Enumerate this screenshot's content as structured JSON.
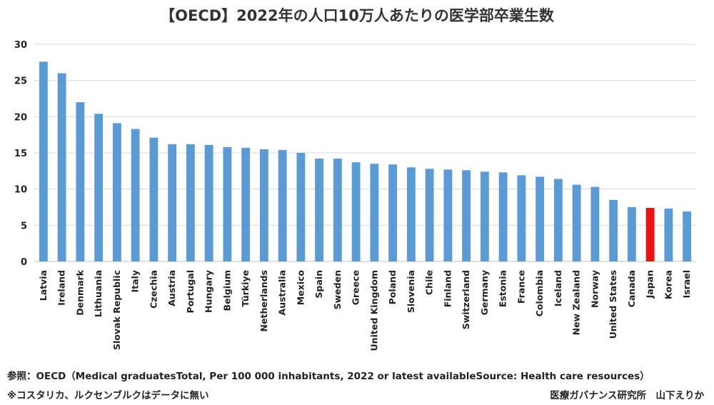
{
  "chart_data": {
    "type": "bar",
    "title": "【OECD】2022年の人口10万人あたりの医学部卒業生数",
    "ylim": [
      0,
      30
    ],
    "yticks": [
      0,
      5,
      10,
      15,
      20,
      25,
      30
    ],
    "grid": true,
    "categories": [
      "Latvia",
      "Ireland",
      "Denmark",
      "Lithuania",
      "Slovak Republic",
      "Italy",
      "Czechia",
      "Austria",
      "Portugal",
      "Hungary",
      "Belgium",
      "Türkiye",
      "Netherlands",
      "Australia",
      "Mexico",
      "Spain",
      "Sweden",
      "Greece",
      "United Kingdom",
      "Poland",
      "Slovenia",
      "Chile",
      "Finland",
      "Switzerland",
      "Germany",
      "Estonia",
      "France",
      "Colombia",
      "Iceland",
      "New Zealand",
      "Norway",
      "United States",
      "Canada",
      "Japan",
      "Korea",
      "Israel"
    ],
    "values": [
      27.6,
      26.0,
      22.0,
      20.4,
      19.1,
      18.3,
      17.1,
      16.2,
      16.2,
      16.1,
      15.8,
      15.7,
      15.5,
      15.4,
      15.0,
      14.2,
      14.2,
      13.7,
      13.5,
      13.4,
      13.0,
      12.8,
      12.7,
      12.6,
      12.4,
      12.3,
      11.9,
      11.7,
      11.4,
      10.6,
      10.3,
      8.5,
      7.5,
      7.4,
      7.3,
      6.9
    ],
    "bar_color": "#5b9bd5",
    "highlight": {
      "category": "Japan",
      "color": "#ee1111"
    }
  },
  "notes": {
    "source": "参照：OECD（Medical graduatesTotal, Per 100 000 inhabitants, 2022 or latest availableSource: Health care resources）",
    "footnote": "※コスタリカ、ルクセンブルクはデータに無い",
    "credit": "医療ガバナンス研究所　山下えりか"
  }
}
